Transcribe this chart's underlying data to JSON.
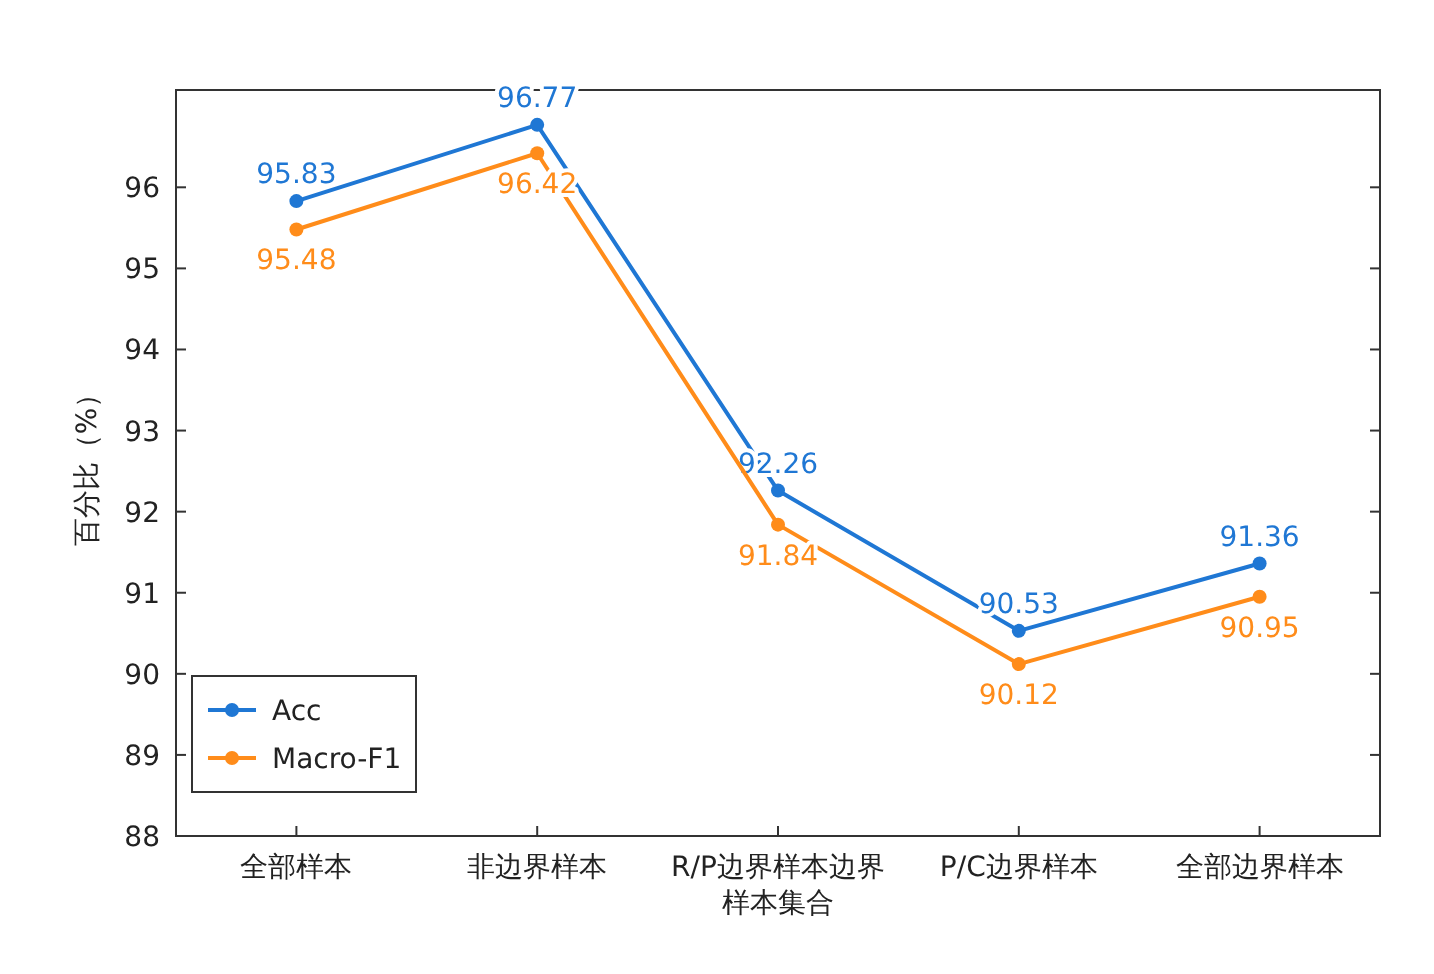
{
  "chart_data": {
    "type": "line",
    "ylabel": "百分比（%）",
    "categories": [
      "全部样本",
      "非边界样本",
      "R/P边界样本边界样本集合",
      "P/C边界样本",
      "全部边界样本"
    ],
    "series": [
      {
        "name": "Acc",
        "color": "#1f77d4",
        "values": [
          95.83,
          96.77,
          92.26,
          90.53,
          91.36
        ]
      },
      {
        "name": "Macro-F1",
        "color": "#ff8c1a",
        "values": [
          95.48,
          96.42,
          91.84,
          90.12,
          90.95
        ]
      }
    ],
    "ylim": [
      88,
      97.2
    ],
    "yticks": [
      88,
      89,
      90,
      91,
      92,
      93,
      94,
      95,
      96
    ],
    "data_labels": true,
    "legend": "bottom left",
    "marker": "circle",
    "line_style": "solid"
  }
}
